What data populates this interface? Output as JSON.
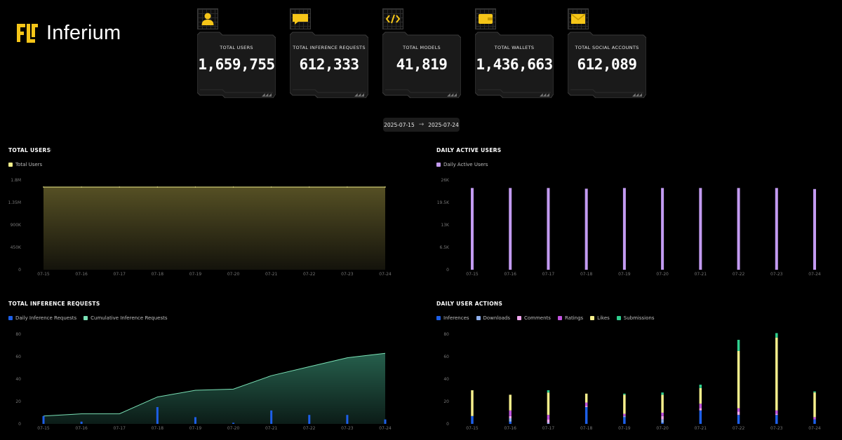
{
  "brand": {
    "name": "Inferium",
    "color": "#f5c518"
  },
  "stats": [
    {
      "label": "TOTAL USERS",
      "value": "1,659,755",
      "icon": "user-icon"
    },
    {
      "label": "TOTAL INFERENCE REQUESTS",
      "value": "612,333",
      "icon": "chat-icon"
    },
    {
      "label": "TOTAL MODELS",
      "value": "41,819",
      "icon": "code-icon"
    },
    {
      "label": "TOTAL WALLETS",
      "value": "1,436,663",
      "icon": "wallet-icon"
    },
    {
      "label": "TOTAL SOCIAL ACCOUNTS",
      "value": "612,089",
      "icon": "mail-icon"
    }
  ],
  "date_range": {
    "start": "2025-07-15",
    "end": "2025-07-24"
  },
  "chart_data": [
    {
      "type": "area",
      "title": "TOTAL USERS",
      "x": [
        "07-15",
        "07-16",
        "07-17",
        "07-18",
        "07-19",
        "07-20",
        "07-21",
        "07-22",
        "07-23",
        "07-24"
      ],
      "series": [
        {
          "name": "Total Users",
          "color": "#f3ef8a",
          "values": [
            1659755,
            1659755,
            1659755,
            1659755,
            1659755,
            1659755,
            1659755,
            1659755,
            1659755,
            1659755
          ]
        }
      ],
      "yticks": [
        "0",
        "450K",
        "900K",
        "1.35M",
        "1.8M"
      ],
      "ylim": [
        0,
        1800000
      ]
    },
    {
      "type": "bar",
      "title": "DAILY ACTIVE USERS",
      "x": [
        "07-15",
        "07-16",
        "07-17",
        "07-18",
        "07-19",
        "07-20",
        "07-21",
        "07-22",
        "07-23",
        "07-24"
      ],
      "series": [
        {
          "name": "Daily Active Users",
          "color": "#c39bf2",
          "values": [
            23700,
            23700,
            23700,
            23500,
            23700,
            23700,
            23700,
            23700,
            23700,
            23400
          ]
        }
      ],
      "yticks": [
        "0",
        "6.5K",
        "13K",
        "19.5K",
        "26K"
      ],
      "ylim": [
        0,
        26000
      ]
    },
    {
      "type": "bar",
      "title": "TOTAL INFERENCE REQUESTS",
      "x": [
        "07-15",
        "07-16",
        "07-17",
        "07-18",
        "07-19",
        "07-20",
        "07-21",
        "07-22",
        "07-23",
        "07-24"
      ],
      "series": [
        {
          "name": "Daily Inference Requests",
          "color": "#1d5fe8",
          "values": [
            7,
            2,
            0,
            15,
            6,
            1,
            12,
            8,
            8,
            4
          ]
        },
        {
          "name": "Cumulative Inference Requests",
          "color": "#7ae0b5",
          "values": [
            7,
            9,
            9,
            24,
            30,
            31,
            43,
            51,
            59,
            63
          ]
        }
      ],
      "yticks": [
        "0",
        "20",
        "40",
        "60",
        "80"
      ],
      "ylim": [
        0,
        80
      ]
    },
    {
      "type": "bar",
      "title": "DAILY USER ACTIONS",
      "x": [
        "07-15",
        "07-16",
        "07-17",
        "07-18",
        "07-19",
        "07-20",
        "07-21",
        "07-22",
        "07-23",
        "07-24"
      ],
      "stacked": true,
      "series": [
        {
          "name": "Inferences",
          "color": "#1d5fe8",
          "values": [
            7,
            2,
            0,
            15,
            6,
            1,
            12,
            8,
            8,
            4
          ]
        },
        {
          "name": "Downloads",
          "color": "#8fb0ee",
          "values": [
            0,
            3,
            1,
            0,
            1,
            3,
            0,
            0,
            0,
            0
          ]
        },
        {
          "name": "Comments",
          "color": "#f0a8ee",
          "values": [
            0,
            2,
            3,
            1,
            0,
            3,
            2,
            3,
            1,
            0
          ]
        },
        {
          "name": "Ratings",
          "color": "#c254e0",
          "values": [
            0,
            5,
            4,
            3,
            2,
            3,
            4,
            3,
            3,
            2
          ]
        },
        {
          "name": "Likes",
          "color": "#f6ef8c",
          "values": [
            23,
            14,
            20,
            8,
            17,
            16,
            14,
            51,
            65,
            22
          ]
        },
        {
          "name": "Submissions",
          "color": "#2fcf8e",
          "values": [
            0,
            0,
            2,
            0,
            1,
            2,
            3,
            10,
            4,
            1
          ]
        }
      ],
      "yticks": [
        "0",
        "20",
        "40",
        "60",
        "80"
      ],
      "ylim": [
        0,
        80
      ]
    }
  ]
}
